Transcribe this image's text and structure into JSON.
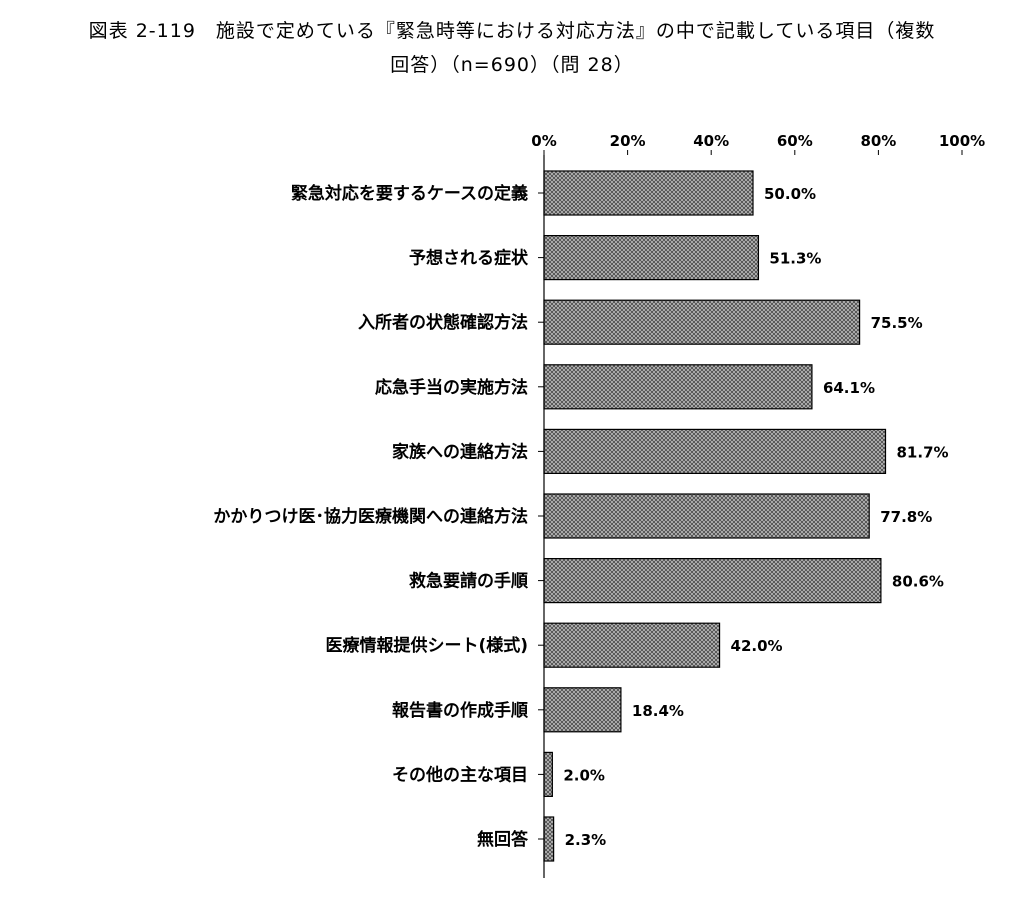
{
  "title_line1": "図表 2-119　施設で定めている『緊急時等における対応方法』の中で記載している項目（複数",
  "title_line2": "回答）（n=690）（問 28）",
  "chart_data": {
    "type": "bar",
    "orientation": "horizontal",
    "categories": [
      "緊急対応を要するケースの定義",
      "予想される症状",
      "入所者の状態確認方法",
      "応急手当の実施方法",
      "家族への連絡方法",
      "かかりつけ医･協力医療機関への連絡方法",
      "救急要請の手順",
      "医療情報提供シート(様式)",
      "報告書の作成手順",
      "その他の主な項目",
      "無回答"
    ],
    "values": [
      50.0,
      51.3,
      75.5,
      64.1,
      81.7,
      77.8,
      80.6,
      42.0,
      18.4,
      2.0,
      2.3
    ],
    "value_labels": [
      "50.0%",
      "51.3%",
      "75.5%",
      "64.1%",
      "81.7%",
      "77.8%",
      "80.6%",
      "42.0%",
      "18.4%",
      "2.0%",
      "2.3%"
    ],
    "xlim": [
      0,
      100
    ],
    "xticks": [
      0,
      20,
      40,
      60,
      80,
      100
    ],
    "xtick_labels": [
      "0%",
      "20%",
      "40%",
      "60%",
      "80%",
      "100%"
    ],
    "x_axis_position": "top",
    "grid": false,
    "bar_pattern": "crosshatch-gray"
  }
}
